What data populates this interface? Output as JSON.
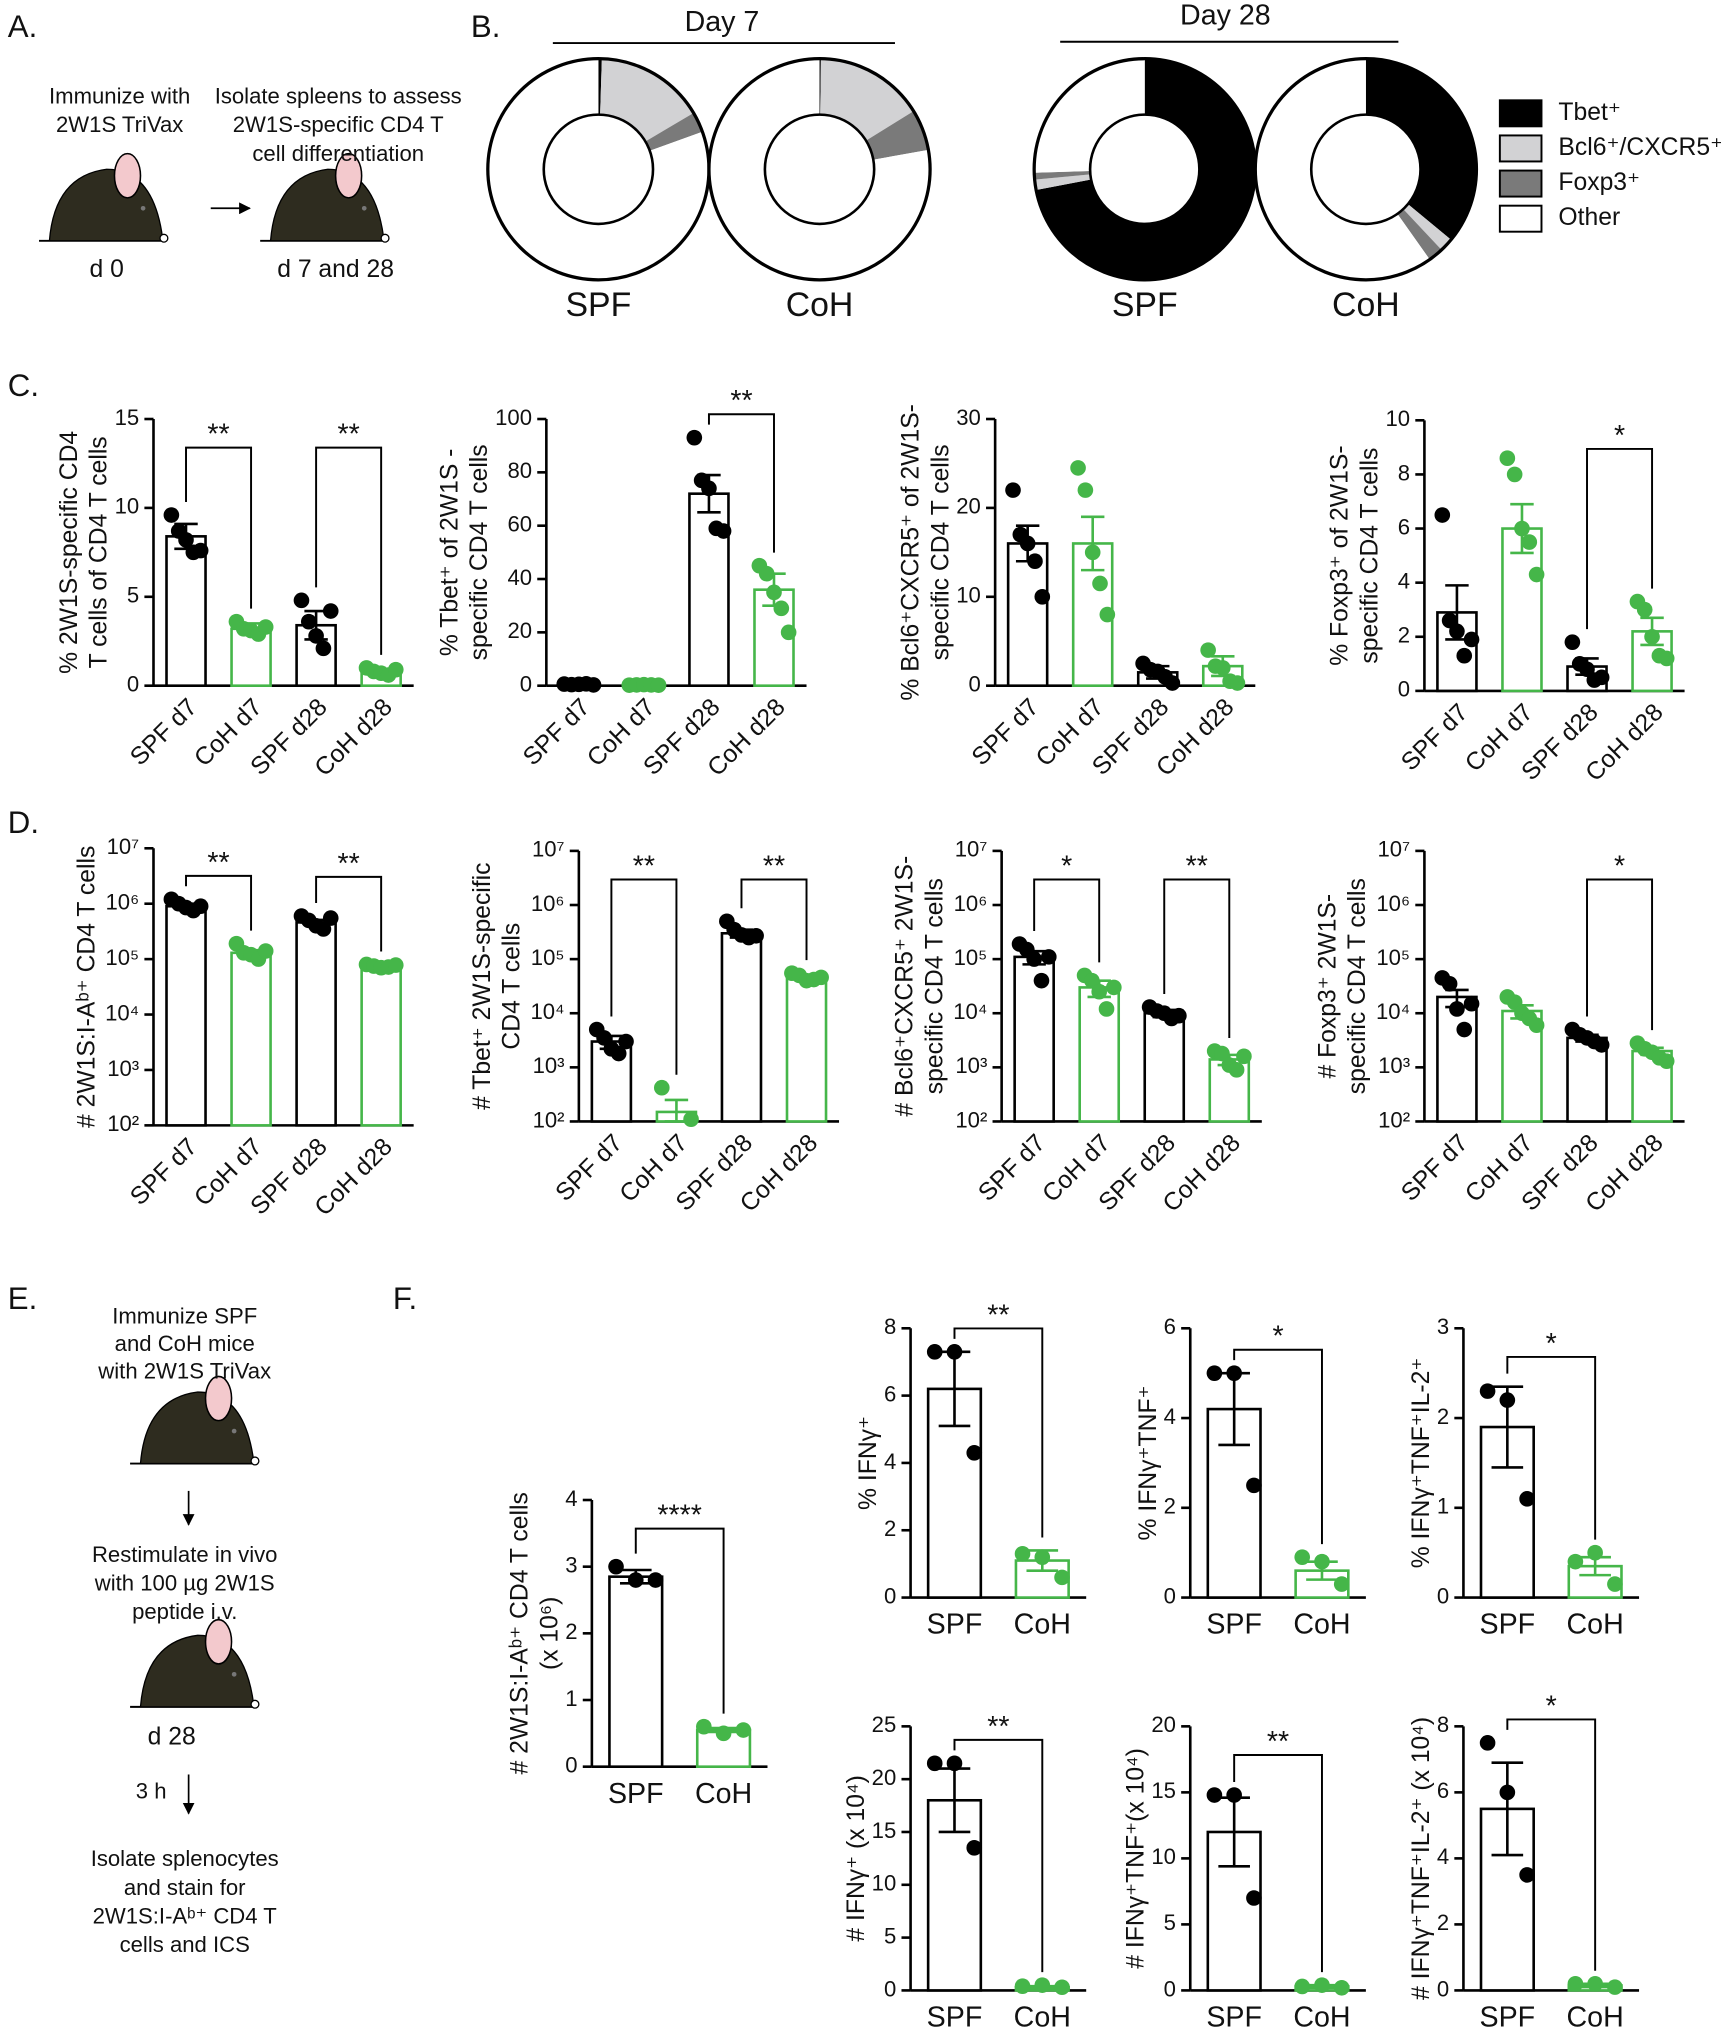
{
  "panel_labels": [
    "A.",
    "B.",
    "C.",
    "D.",
    "E.",
    "F."
  ],
  "panel_a": {
    "step1": [
      "Immunize with",
      "2W1S TriVax"
    ],
    "step2": [
      "Isolate spleens to assess",
      "2W1S-specific CD4 T",
      "cell differentiation"
    ],
    "time1": "d 0",
    "time2": "d 7 and 28"
  },
  "panel_e": {
    "step1": [
      "Immunize SPF",
      "and CoH mice",
      "with 2W1S TriVax"
    ],
    "step2": [
      "Restimulate in vivo",
      "with 100 µg 2W1S",
      "peptide i.v."
    ],
    "time": "d 28",
    "interval": "3 h",
    "step3": [
      "Isolate splenocytes",
      "and stain for",
      "2W1S:I-Aᵇ⁺ CD4 T",
      "cells and ICS"
    ]
  },
  "chart_data": [
    {
      "type": "donut",
      "categories": [
        "Tbet⁺",
        "Bcl6⁺/CXCR5⁺",
        "Foxp3⁺",
        "Other"
      ],
      "colors": [
        "#000000",
        "#d2d2d4",
        "#7a7a7a",
        "#ffffff"
      ],
      "groups": [
        {
          "title": "Day 7",
          "rings": [
            {
              "label": "SPF",
              "values": [
                0.5,
                16,
                3,
                80.5
              ]
            },
            {
              "label": "CoH",
              "values": [
                0.2,
                16,
                6,
                77.8
              ]
            }
          ]
        },
        {
          "title": "Day 28",
          "rings": [
            {
              "label": "SPF",
              "values": [
                72,
                1.5,
                1,
                25.5
              ]
            },
            {
              "label": "CoH",
              "values": [
                36,
                2,
                2.2,
                59.8
              ]
            }
          ]
        }
      ]
    },
    {
      "type": "bar",
      "ylabel": [
        "% 2W1S-specific CD4",
        "T cells of CD4 T cells"
      ],
      "categories": [
        "SPF d7",
        "CoH d7",
        "SPF d28",
        "CoH d28"
      ],
      "colors": [
        "#000000",
        "#45b649",
        "#000000",
        "#45b649"
      ],
      "values": [
        8.4,
        3.2,
        3.4,
        0.8
      ],
      "errors": [
        0.7,
        0.3,
        0.8,
        0.1
      ],
      "points": [
        [
          9.6,
          8.7,
          8.2,
          7.5,
          7.6
        ],
        [
          3.6,
          3.2,
          3.1,
          2.9,
          3.3
        ],
        [
          4.8,
          3.6,
          2.8,
          2.1,
          4.2
        ],
        [
          1.0,
          0.8,
          0.7,
          0.6,
          0.9
        ]
      ],
      "ylim": [
        0,
        15
      ],
      "yticks": [
        0,
        5,
        10,
        15
      ],
      "xtick_rotation": -45,
      "brackets": [
        {
          "pair": [
            0,
            1
          ],
          "label": "**"
        },
        {
          "pair": [
            2,
            3
          ],
          "label": "**"
        }
      ]
    },
    {
      "type": "bar",
      "ylabel": [
        "% Tbet⁺ of 2W1S -",
        "specific CD4 T cells"
      ],
      "categories": [
        "SPF d7",
        "CoH d7",
        "SPF d28",
        "CoH d28"
      ],
      "colors": [
        "#000000",
        "#45b649",
        "#000000",
        "#45b649"
      ],
      "values": [
        0.5,
        0.3,
        72,
        36
      ],
      "errors": [
        0.2,
        0.1,
        7,
        6
      ],
      "points": [
        [
          0.6,
          0.4,
          0.5,
          0.7,
          0.3
        ],
        [
          0.2,
          0.3,
          0.4,
          0.3,
          0.2
        ],
        [
          93,
          77,
          74,
          59,
          58
        ],
        [
          45,
          42,
          35,
          29,
          20
        ]
      ],
      "ylim": [
        0,
        100
      ],
      "yticks": [
        0,
        20,
        40,
        60,
        80,
        100
      ],
      "xtick_rotation": -45,
      "brackets": [
        {
          "pair": [
            2,
            3
          ],
          "label": "**"
        }
      ]
    },
    {
      "type": "bar",
      "ylabel": [
        "% Bcl6⁺CXCR5⁺ of 2W1S-",
        "specific CD4 T cells"
      ],
      "categories": [
        "SPF d7",
        "CoH d7",
        "SPF d28",
        "CoH d28"
      ],
      "colors": [
        "#000000",
        "#45b649",
        "#000000",
        "#45b649"
      ],
      "values": [
        16,
        16,
        1.5,
        2.2
      ],
      "errors": [
        2,
        3,
        0.7,
        1.1
      ],
      "points": [
        [
          22,
          17,
          16,
          14,
          10
        ],
        [
          24.5,
          22,
          15,
          11.5,
          8
        ],
        [
          2.5,
          1.8,
          1.6,
          1,
          0.3
        ],
        [
          4,
          2.2,
          2,
          0.5,
          0.3
        ]
      ],
      "ylim": [
        0,
        30
      ],
      "yticks": [
        0,
        10,
        20,
        30
      ],
      "xtick_rotation": -45
    },
    {
      "type": "bar",
      "ylabel": [
        "% Foxp3⁺ of 2W1S-",
        "specific CD4 T cells"
      ],
      "categories": [
        "SPF d7",
        "CoH d7",
        "SPF d28",
        "CoH d28"
      ],
      "colors": [
        "#000000",
        "#45b649",
        "#000000",
        "#45b649"
      ],
      "values": [
        2.9,
        6,
        0.9,
        2.2
      ],
      "errors": [
        1,
        0.9,
        0.3,
        0.5
      ],
      "points": [
        [
          6.5,
          2.6,
          2.2,
          1.3,
          1.9
        ],
        [
          8.6,
          8,
          6,
          5.5,
          4.3
        ],
        [
          1.8,
          1,
          0.8,
          0.4,
          0.5
        ],
        [
          3.3,
          3,
          2,
          1.3,
          1.2
        ]
      ],
      "ylim": [
        0,
        10
      ],
      "yticks": [
        0,
        2,
        4,
        6,
        8,
        10
      ],
      "xtick_rotation": -45,
      "brackets": [
        {
          "pair": [
            2,
            3
          ],
          "label": "*"
        }
      ]
    },
    {
      "type": "bar",
      "log_scale": true,
      "ylabel": [
        "# 2W1S:I-Aᵇ⁺ CD4 T cells"
      ],
      "categories": [
        "SPF d7",
        "CoH d7",
        "SPF d28",
        "CoH d28"
      ],
      "colors": [
        "#000000",
        "#45b649",
        "#000000",
        "#45b649"
      ],
      "values": [
        900000,
        130000,
        460000,
        75000
      ],
      "errors": [
        100000,
        15000,
        50000,
        3000
      ],
      "points": [
        [
          1200000,
          1000000,
          850000,
          750000,
          900000
        ],
        [
          190000,
          130000,
          120000,
          100000,
          140000
        ],
        [
          600000,
          500000,
          400000,
          350000,
          550000
        ],
        [
          80000,
          75000,
          70000,
          72000,
          78000
        ]
      ],
      "ylim": [
        100,
        10000000
      ],
      "yticks": [
        {
          "value": 100,
          "label": "10²"
        },
        {
          "value": 1000,
          "label": "10³"
        },
        {
          "value": 10000,
          "label": "10⁴"
        },
        {
          "value": 100000,
          "label": "10⁵"
        },
        {
          "value": 1000000,
          "label": "10⁶"
        },
        {
          "value": 10000000,
          "label": "10⁷"
        }
      ],
      "xtick_rotation": -45,
      "brackets": [
        {
          "pair": [
            0,
            1
          ],
          "label": "**"
        },
        {
          "pair": [
            2,
            3
          ],
          "label": "**"
        }
      ]
    },
    {
      "type": "bar",
      "log_scale": true,
      "ylabel": [
        "# Tbet⁺ 2W1S-specific",
        "CD4 T cells"
      ],
      "categories": [
        "SPF d7",
        "CoH d7",
        "SPF d28",
        "CoH d28"
      ],
      "colors": [
        "#000000",
        "#45b649",
        "#000000",
        "#45b649"
      ],
      "values": [
        3000,
        150,
        300000,
        45000
      ],
      "errors": [
        800,
        100,
        50000,
        5000
      ],
      "points": [
        [
          5000,
          3500,
          2200,
          1800,
          3000
        ],
        [
          420,
          110
        ],
        [
          500000,
          350000,
          280000,
          250000,
          270000
        ],
        [
          55000,
          50000,
          40000,
          42000,
          46000
        ]
      ],
      "ylim": [
        100,
        10000000
      ],
      "yticks": [
        {
          "value": 100,
          "label": "10²"
        },
        {
          "value": 1000,
          "label": "10³"
        },
        {
          "value": 10000,
          "label": "10⁴"
        },
        {
          "value": 100000,
          "label": "10⁵"
        },
        {
          "value": 1000000,
          "label": "10⁶"
        },
        {
          "value": 10000000,
          "label": "10⁷"
        }
      ],
      "xtick_rotation": -45,
      "brackets": [
        {
          "pair": [
            0,
            1
          ],
          "label": "**"
        },
        {
          "pair": [
            2,
            3
          ],
          "label": "**"
        }
      ]
    },
    {
      "type": "bar",
      "log_scale": true,
      "ylabel": [
        "# Bcl6⁺CXCR5⁺ 2W1S-",
        "specific CD4 T cells"
      ],
      "categories": [
        "SPF d7",
        "CoH d7",
        "SPF d28",
        "CoH d28"
      ],
      "colors": [
        "#000000",
        "#45b649",
        "#000000",
        "#45b649"
      ],
      "values": [
        110000,
        30000,
        10000,
        1400
      ],
      "errors": [
        30000,
        10000,
        1500,
        300
      ],
      "points": [
        [
          190000,
          150000,
          100000,
          40000,
          110000
        ],
        [
          50000,
          40000,
          25000,
          12000,
          30000
        ],
        [
          13000,
          11000,
          10000,
          8000,
          9000
        ],
        [
          2000,
          1800,
          1100,
          900,
          1600
        ]
      ],
      "ylim": [
        100,
        10000000
      ],
      "yticks": [
        {
          "value": 100,
          "label": "10²"
        },
        {
          "value": 1000,
          "label": "10³"
        },
        {
          "value": 10000,
          "label": "10⁴"
        },
        {
          "value": 100000,
          "label": "10⁵"
        },
        {
          "value": 1000000,
          "label": "10⁶"
        },
        {
          "value": 10000000,
          "label": "10⁷"
        }
      ],
      "xtick_rotation": -45,
      "brackets": [
        {
          "pair": [
            0,
            1
          ],
          "label": "*"
        },
        {
          "pair": [
            2,
            3
          ],
          "label": "**"
        }
      ]
    },
    {
      "type": "bar",
      "log_scale": true,
      "ylabel": [
        "# Foxp3⁺ 2W1S-",
        "specific CD4 T cells"
      ],
      "categories": [
        "SPF d7",
        "CoH d7",
        "SPF d28",
        "CoH d28"
      ],
      "colors": [
        "#000000",
        "#45b649",
        "#000000",
        "#45b649"
      ],
      "values": [
        20000,
        11000,
        3500,
        2000
      ],
      "errors": [
        7000,
        3000,
        500,
        300
      ],
      "points": [
        [
          45000,
          35000,
          12000,
          5000,
          15000
        ],
        [
          20000,
          16000,
          10000,
          8000,
          6000
        ],
        [
          5000,
          4000,
          3500,
          3000,
          2600
        ],
        [
          2800,
          2200,
          1900,
          1500,
          1300
        ]
      ],
      "ylim": [
        100,
        10000000
      ],
      "yticks": [
        {
          "value": 100,
          "label": "10²"
        },
        {
          "value": 1000,
          "label": "10³"
        },
        {
          "value": 10000,
          "label": "10⁴"
        },
        {
          "value": 100000,
          "label": "10⁵"
        },
        {
          "value": 1000000,
          "label": "10⁶"
        },
        {
          "value": 10000000,
          "label": "10⁷"
        }
      ],
      "xtick_rotation": -45,
      "brackets": [
        {
          "pair": [
            2,
            3
          ],
          "label": "*"
        }
      ]
    },
    {
      "type": "bar",
      "ylabel": [
        "# 2W1S:I-Aᵇ⁺ CD4 T cells",
        "(x 10⁶)"
      ],
      "categories": [
        "SPF",
        "CoH"
      ],
      "colors": [
        "#000000",
        "#45b649"
      ],
      "values": [
        2.85,
        0.55
      ],
      "errors": [
        0.1,
        0.03
      ],
      "points": [
        [
          3.0,
          2.8,
          2.8
        ],
        [
          0.6,
          0.5,
          0.55
        ]
      ],
      "ylim": [
        0,
        4
      ],
      "yticks": [
        0,
        1,
        2,
        3,
        4
      ],
      "brackets": [
        {
          "pair": [
            0,
            1
          ],
          "label": "****"
        }
      ]
    },
    {
      "type": "bar",
      "ylabel": [
        "% IFNγ⁺"
      ],
      "categories": [
        "SPF",
        "CoH"
      ],
      "colors": [
        "#000000",
        "#45b649"
      ],
      "values": [
        6.2,
        1.1
      ],
      "errors": [
        1.1,
        0.3
      ],
      "points": [
        [
          7.3,
          7.3,
          4.3
        ],
        [
          1.3,
          1.2,
          0.6
        ]
      ],
      "ylim": [
        0,
        8
      ],
      "yticks": [
        0,
        2,
        4,
        6,
        8
      ],
      "brackets": [
        {
          "pair": [
            0,
            1
          ],
          "label": "**"
        }
      ]
    },
    {
      "type": "bar",
      "ylabel": [
        "% IFNγ⁺TNF⁺"
      ],
      "categories": [
        "SPF",
        "CoH"
      ],
      "colors": [
        "#000000",
        "#45b649"
      ],
      "values": [
        4.2,
        0.6
      ],
      "errors": [
        0.8,
        0.2
      ],
      "points": [
        [
          5,
          5,
          2.5
        ],
        [
          0.9,
          0.8,
          0.3
        ]
      ],
      "ylim": [
        0,
        6
      ],
      "yticks": [
        0,
        2,
        4,
        6
      ],
      "brackets": [
        {
          "pair": [
            0,
            1
          ],
          "label": "*"
        }
      ]
    },
    {
      "type": "bar",
      "ylabel": [
        "% IFNγ⁺TNF⁺IL-2⁺"
      ],
      "categories": [
        "SPF",
        "CoH"
      ],
      "colors": [
        "#000000",
        "#45b649"
      ],
      "values": [
        1.9,
        0.35
      ],
      "errors": [
        0.45,
        0.1
      ],
      "points": [
        [
          2.3,
          2.2,
          1.1
        ],
        [
          0.4,
          0.5,
          0.15
        ]
      ],
      "ylim": [
        0,
        3
      ],
      "yticks": [
        0,
        1,
        2,
        3
      ],
      "brackets": [
        {
          "pair": [
            0,
            1
          ],
          "label": "*"
        }
      ]
    },
    {
      "type": "bar",
      "ylabel": [
        "# IFNγ⁺ (x 10⁴)"
      ],
      "categories": [
        "SPF",
        "CoH"
      ],
      "colors": [
        "#000000",
        "#45b649"
      ],
      "values": [
        18,
        0.3
      ],
      "errors": [
        3,
        0.1
      ],
      "points": [
        [
          21.5,
          21.5,
          13.5
        ],
        [
          0.4,
          0.5,
          0.3
        ]
      ],
      "ylim": [
        0,
        25
      ],
      "yticks": [
        0,
        5,
        10,
        15,
        20,
        25
      ],
      "brackets": [
        {
          "pair": [
            0,
            1
          ],
          "label": "**"
        }
      ]
    },
    {
      "type": "bar",
      "ylabel": [
        "# IFNγ⁺TNF⁺(x 10⁴)"
      ],
      "categories": [
        "SPF",
        "CoH"
      ],
      "colors": [
        "#000000",
        "#45b649"
      ],
      "values": [
        12,
        0.3
      ],
      "errors": [
        2.6,
        0.1
      ],
      "points": [
        [
          14.8,
          14.8,
          7
        ],
        [
          0.3,
          0.4,
          0.2
        ]
      ],
      "ylim": [
        0,
        20
      ],
      "yticks": [
        0,
        5,
        10,
        15,
        20
      ],
      "brackets": [
        {
          "pair": [
            0,
            1
          ],
          "label": "**"
        }
      ]
    },
    {
      "type": "bar",
      "ylabel": [
        "# IFNγ⁺TNF⁺IL-2⁺ (x 10⁴)"
      ],
      "categories": [
        "SPF",
        "CoH"
      ],
      "colors": [
        "#000000",
        "#45b649"
      ],
      "values": [
        5.5,
        0.15
      ],
      "errors": [
        1.4,
        0.05
      ],
      "points": [
        [
          7.5,
          6,
          3.5
        ],
        [
          0.2,
          0.2,
          0.1
        ]
      ],
      "ylim": [
        0,
        8
      ],
      "yticks": [
        0,
        2,
        4,
        6,
        8
      ],
      "brackets": [
        {
          "pair": [
            0,
            1
          ],
          "label": "*"
        }
      ]
    }
  ]
}
